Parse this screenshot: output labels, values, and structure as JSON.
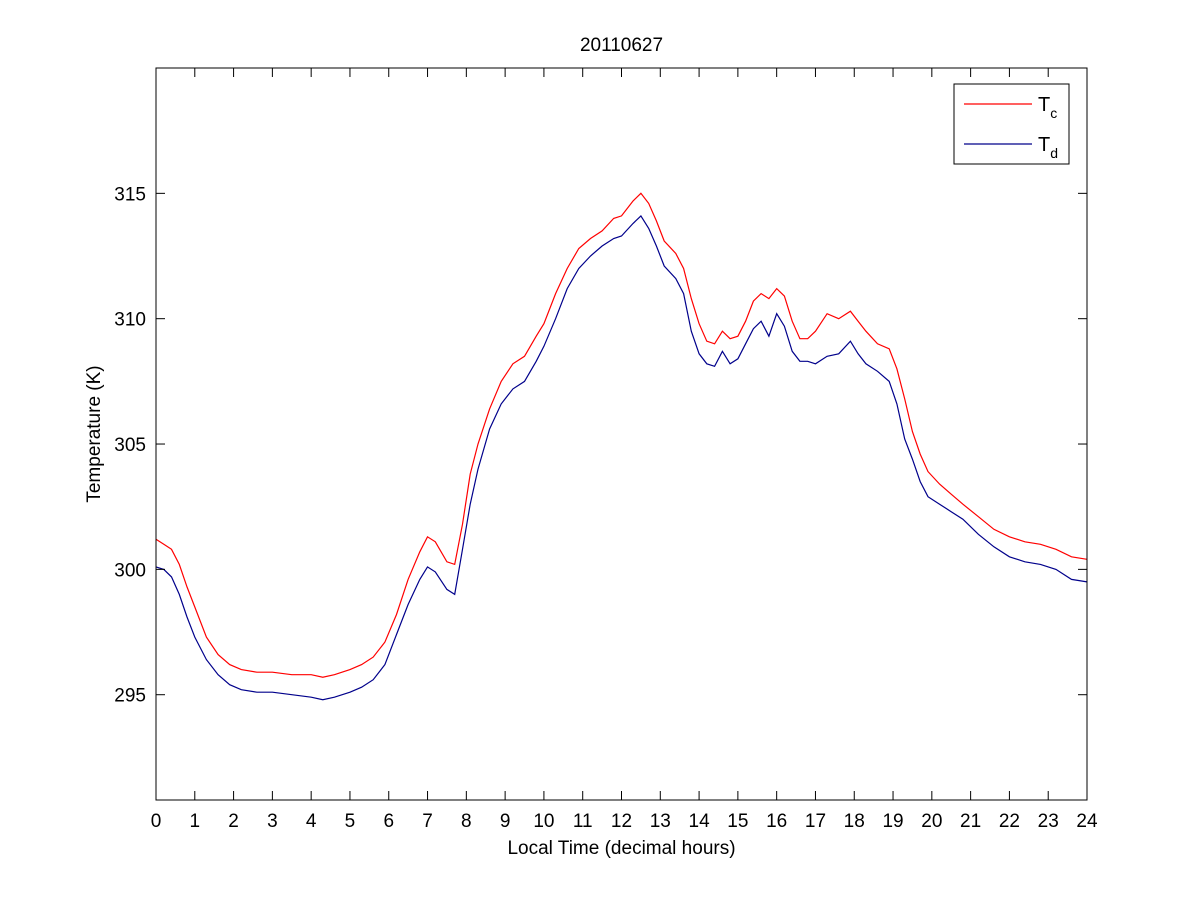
{
  "chart_data": {
    "type": "line",
    "title": "20110627",
    "xlabel": "Local Time (decimal hours)",
    "ylabel": "Temperature (K)",
    "xlim": [
      0,
      24
    ],
    "ylim": [
      290.8,
      320
    ],
    "xticks": [
      0,
      1,
      2,
      3,
      4,
      5,
      6,
      7,
      8,
      9,
      10,
      11,
      12,
      13,
      14,
      15,
      16,
      17,
      18,
      19,
      20,
      21,
      22,
      23,
      24
    ],
    "yticks": [
      295,
      300,
      305,
      310,
      315
    ],
    "grid": false,
    "legend_position": "top-right",
    "series": [
      {
        "name": "Tc",
        "name_main": "T",
        "name_sub": "c",
        "color": "#ff0000",
        "x": [
          0,
          0.2,
          0.4,
          0.6,
          0.8,
          1.0,
          1.3,
          1.6,
          1.9,
          2.2,
          2.6,
          3.0,
          3.5,
          4.0,
          4.3,
          4.6,
          5.0,
          5.3,
          5.6,
          5.9,
          6.2,
          6.5,
          6.8,
          7.0,
          7.2,
          7.5,
          7.7,
          7.9,
          8.1,
          8.3,
          8.6,
          8.9,
          9.2,
          9.5,
          9.8,
          10.0,
          10.3,
          10.6,
          10.9,
          11.2,
          11.5,
          11.8,
          12.0,
          12.3,
          12.5,
          12.7,
          12.9,
          13.1,
          13.4,
          13.6,
          13.8,
          14.0,
          14.2,
          14.4,
          14.6,
          14.8,
          15.0,
          15.2,
          15.4,
          15.6,
          15.8,
          16.0,
          16.2,
          16.4,
          16.6,
          16.8,
          17.0,
          17.3,
          17.6,
          17.9,
          18.1,
          18.3,
          18.6,
          18.9,
          19.1,
          19.3,
          19.5,
          19.7,
          19.9,
          20.2,
          20.5,
          20.8,
          21.2,
          21.6,
          22.0,
          22.4,
          22.8,
          23.2,
          23.6,
          24.0
        ],
        "y": [
          301.2,
          301.0,
          300.8,
          300.2,
          299.3,
          298.5,
          297.3,
          296.6,
          296.2,
          296.0,
          295.9,
          295.9,
          295.8,
          295.8,
          295.7,
          295.8,
          296.0,
          296.2,
          296.5,
          297.1,
          298.2,
          299.6,
          300.7,
          301.3,
          301.1,
          300.3,
          300.2,
          301.8,
          303.8,
          305.0,
          306.4,
          307.5,
          308.2,
          308.5,
          309.3,
          309.8,
          311.0,
          312.0,
          312.8,
          313.2,
          313.5,
          314.0,
          314.1,
          314.7,
          315.0,
          314.6,
          313.9,
          313.1,
          312.6,
          312.0,
          310.8,
          309.8,
          309.1,
          309.0,
          309.5,
          309.2,
          309.3,
          309.9,
          310.7,
          311.0,
          310.8,
          311.2,
          310.9,
          309.9,
          309.2,
          309.2,
          309.5,
          310.2,
          310.0,
          310.3,
          309.9,
          309.5,
          309.0,
          308.8,
          308.0,
          306.8,
          305.5,
          304.6,
          303.9,
          303.4,
          303.0,
          302.6,
          302.1,
          301.6,
          301.3,
          301.1,
          301.0,
          300.8,
          300.5,
          300.4
        ]
      },
      {
        "name": "Td",
        "name_main": "T",
        "name_sub": "d",
        "color": "#00008b",
        "x": [
          0,
          0.2,
          0.4,
          0.6,
          0.8,
          1.0,
          1.3,
          1.6,
          1.9,
          2.2,
          2.6,
          3.0,
          3.5,
          4.0,
          4.3,
          4.6,
          5.0,
          5.3,
          5.6,
          5.9,
          6.2,
          6.5,
          6.8,
          7.0,
          7.2,
          7.5,
          7.7,
          7.9,
          8.1,
          8.3,
          8.6,
          8.9,
          9.2,
          9.5,
          9.8,
          10.0,
          10.3,
          10.6,
          10.9,
          11.2,
          11.5,
          11.8,
          12.0,
          12.3,
          12.5,
          12.7,
          12.9,
          13.1,
          13.4,
          13.6,
          13.8,
          14.0,
          14.2,
          14.4,
          14.6,
          14.8,
          15.0,
          15.2,
          15.4,
          15.6,
          15.8,
          16.0,
          16.2,
          16.4,
          16.6,
          16.8,
          17.0,
          17.3,
          17.6,
          17.9,
          18.1,
          18.3,
          18.6,
          18.9,
          19.1,
          19.3,
          19.5,
          19.7,
          19.9,
          20.2,
          20.5,
          20.8,
          21.2,
          21.6,
          22.0,
          22.4,
          22.8,
          23.2,
          23.6,
          24.0
        ],
        "y": [
          300.1,
          300.0,
          299.7,
          299.0,
          298.1,
          297.3,
          296.4,
          295.8,
          295.4,
          295.2,
          295.1,
          295.1,
          295.0,
          294.9,
          294.8,
          294.9,
          295.1,
          295.3,
          295.6,
          296.2,
          297.4,
          298.6,
          299.6,
          300.1,
          299.9,
          299.2,
          299.0,
          300.8,
          302.6,
          304.0,
          305.6,
          306.6,
          307.2,
          307.5,
          308.3,
          308.9,
          310.0,
          311.2,
          312.0,
          312.5,
          312.9,
          313.2,
          313.3,
          313.8,
          314.1,
          313.6,
          312.9,
          312.1,
          311.6,
          311.0,
          309.5,
          308.6,
          308.2,
          308.1,
          308.7,
          308.2,
          308.4,
          309.0,
          309.6,
          309.9,
          309.3,
          310.2,
          309.7,
          308.7,
          308.3,
          308.3,
          308.2,
          308.5,
          308.6,
          309.1,
          308.6,
          308.2,
          307.9,
          307.5,
          306.6,
          305.2,
          304.4,
          303.5,
          302.9,
          302.6,
          302.3,
          302.0,
          301.4,
          300.9,
          300.5,
          300.3,
          300.2,
          300.0,
          299.6,
          299.5
        ]
      }
    ]
  }
}
